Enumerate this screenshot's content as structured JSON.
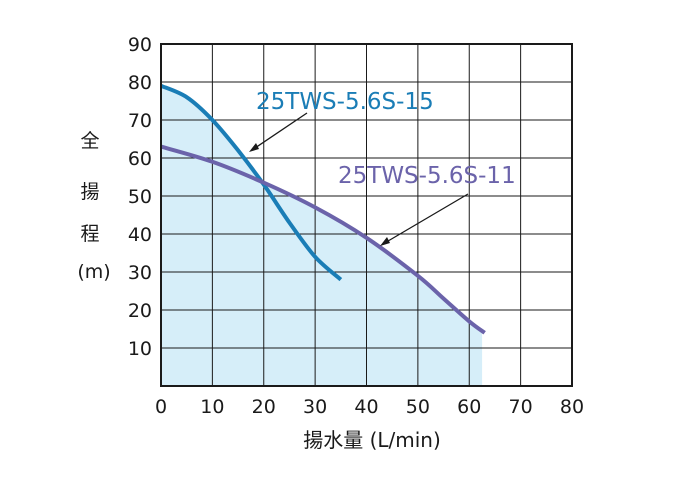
{
  "chart_data": {
    "type": "line",
    "xlabel": "揚水量 (L/min)",
    "ylabel": [
      "全",
      "揚",
      "程",
      "(m)"
    ],
    "xlim": [
      0,
      80
    ],
    "ylim": [
      0,
      90
    ],
    "x_ticks": [
      0,
      10,
      20,
      30,
      40,
      50,
      60,
      70,
      80
    ],
    "y_ticks": [
      10,
      20,
      30,
      40,
      50,
      60,
      70,
      80,
      90
    ],
    "grid": true,
    "shaded_region": {
      "color": "#d6eef9",
      "under_series": "25TWS-5.6S-11",
      "fill_to_x": 62.5
    },
    "series": [
      {
        "name": "25TWS-5.6S-15",
        "color": "#1a7db6",
        "x": [
          0,
          5,
          10,
          15,
          20,
          25,
          30,
          35
        ],
        "y": [
          79,
          76,
          70,
          62,
          53,
          43,
          34,
          28
        ]
      },
      {
        "name": "25TWS-5.6S-11",
        "color": "#6b63aa",
        "x": [
          0,
          10,
          20,
          30,
          40,
          50,
          55,
          60,
          63
        ],
        "y": [
          63,
          59,
          53.5,
          47,
          39,
          29,
          23,
          17,
          14
        ]
      }
    ]
  }
}
